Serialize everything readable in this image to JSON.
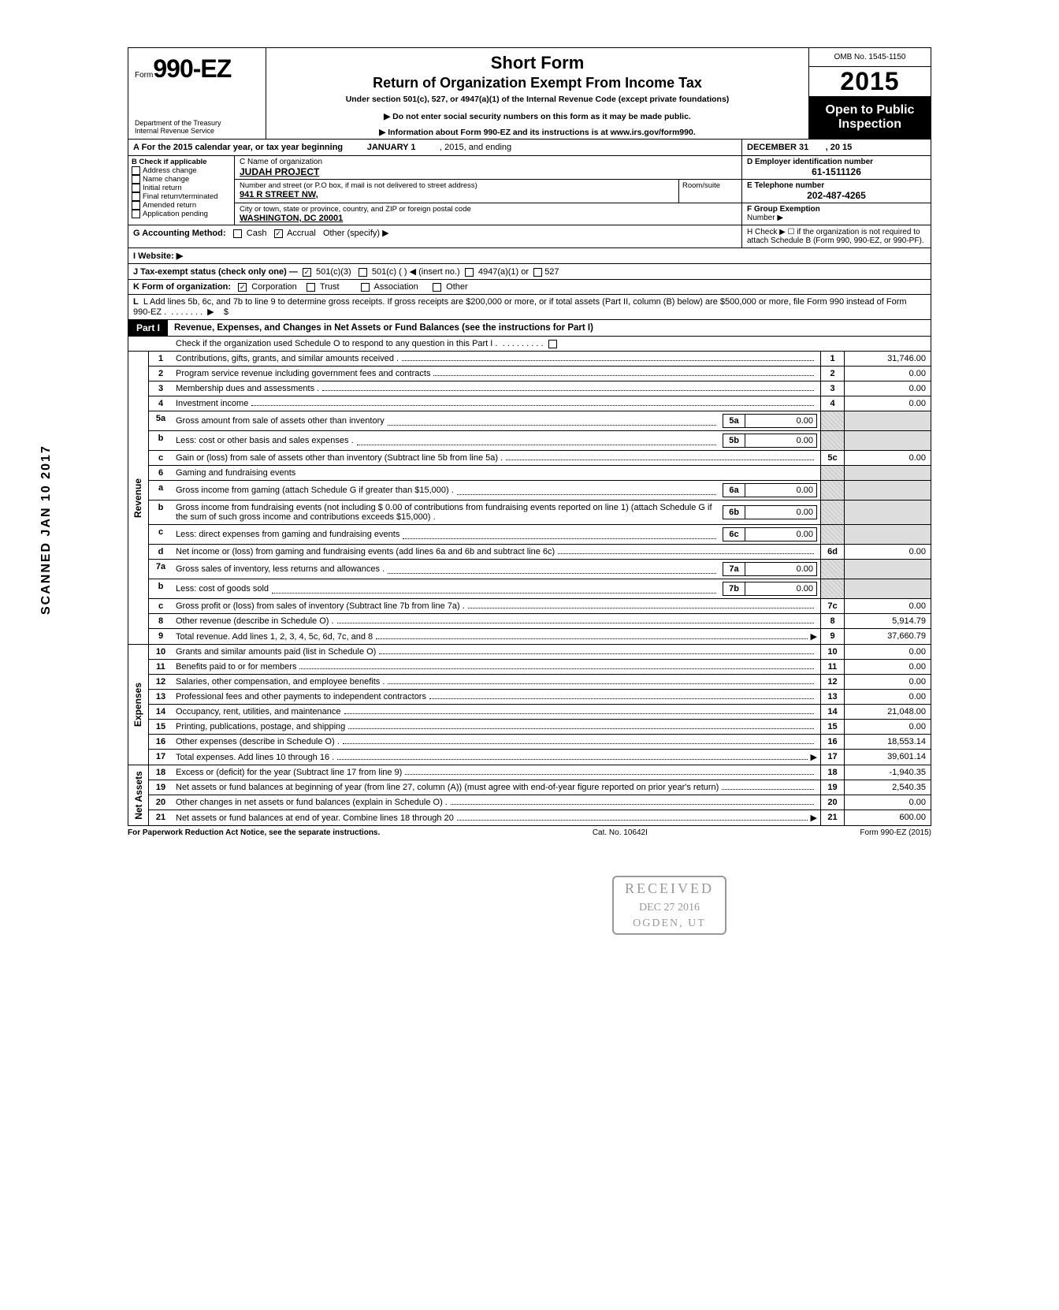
{
  "header": {
    "form_prefix": "Form",
    "form_number": "990-EZ",
    "dept1": "Department of the Treasury",
    "dept2": "Internal Revenue Service",
    "short_form": "Short Form",
    "return_title": "Return of Organization Exempt From Income Tax",
    "under_section": "Under section 501(c), 527, or 4947(a)(1) of the Internal Revenue Code (except private foundations)",
    "instr1": "▶ Do not enter social security numbers on this form as it may be made public.",
    "instr2": "▶ Information about Form 990-EZ and its instructions is at www.irs.gov/form990.",
    "omb": "OMB No. 1545-1150",
    "year": "2015",
    "open1": "Open to Public",
    "open2": "Inspection"
  },
  "row_a": {
    "text_left": "A  For the 2015 calendar year, or tax year beginning",
    "begin": "JANUARY 1",
    "mid": ", 2015, and ending",
    "end": "DECEMBER 31",
    "end2": ", 20   15"
  },
  "col_b": {
    "heading": "B  Check if applicable",
    "items": [
      "Address change",
      "Name change",
      "Initial return",
      "Final return/terminated",
      "Amended return",
      "Application pending"
    ]
  },
  "section_c": {
    "c_label": "C  Name of organization",
    "c_name": "JUDAH PROJECT",
    "addr_label": "Number and street (or P.O  box, if mail is not delivered to street address)",
    "addr": "941 R STREET NW,",
    "room_label": "Room/suite",
    "city_label": "City or town, state or province, country, and ZIP or foreign postal code",
    "city": "WASHINGTON, DC 20001"
  },
  "section_d": {
    "d_label": "D Employer identification number",
    "ein": "61-1511126",
    "e_label": "E Telephone number",
    "phone": "202-487-4265",
    "f_label": "F Group Exemption",
    "f_label2": "Number ▶"
  },
  "row_g": {
    "g": "G  Accounting Method:",
    "cash": "Cash",
    "accrual": "Accrual",
    "other": "Other (specify) ▶",
    "h": "H  Check ▶ ☐ if the organization is not required to attach Schedule B (Form 990, 990-EZ, or 990-PF)."
  },
  "row_i": {
    "i": "I   Website: ▶"
  },
  "row_j": {
    "j": "J  Tax-exempt status (check only one) —",
    "c3": "501(c)(3)",
    "c": "501(c) (          ) ◀ (insert no.)",
    "a4947": "4947(a)(1) or",
    "s527": "527"
  },
  "row_k": {
    "k": "K  Form of organization:",
    "corp": "Corporation",
    "trust": "Trust",
    "assoc": "Association",
    "other": "Other"
  },
  "row_l": {
    "l": "L  Add lines 5b, 6c, and 7b to line 9 to determine gross receipts. If gross receipts are $200,000 or more, or if total assets (Part II, column (B) below) are $500,000 or more, file Form 990 instead of Form 990-EZ .",
    "arrow": "▶",
    "dollar": "$"
  },
  "part1": {
    "label": "Part I",
    "title": "Revenue, Expenses, and Changes in Net Assets or Fund Balances (see the instructions for Part I)",
    "sub": "Check if the organization used Schedule O to respond to any question in this Part I ."
  },
  "side_labels": {
    "revenue": "Revenue",
    "expenses": "Expenses",
    "net": "Net Assets"
  },
  "lines": {
    "l1": {
      "n": "1",
      "d": "Contributions, gifts, grants, and similar amounts received .",
      "amt": "31,746.00"
    },
    "l2": {
      "n": "2",
      "d": "Program service revenue including government fees and contracts",
      "amt": "0.00"
    },
    "l3": {
      "n": "3",
      "d": "Membership dues and assessments .",
      "amt": "0.00"
    },
    "l4": {
      "n": "4",
      "d": "Investment income",
      "amt": "0.00"
    },
    "l5a": {
      "n": "5a",
      "d": "Gross amount from sale of assets other than inventory",
      "ib": "5a",
      "iamt": "0.00"
    },
    "l5b": {
      "n": "b",
      "d": "Less: cost or other basis and sales expenses .",
      "ib": "5b",
      "iamt": "0.00"
    },
    "l5c": {
      "n": "c",
      "d": "Gain or (loss) from sale of assets other than inventory (Subtract line 5b from line 5a) .",
      "box": "5c",
      "amt": "0.00"
    },
    "l6": {
      "n": "6",
      "d": "Gaming and fundraising events"
    },
    "l6a": {
      "n": "a",
      "d": "Gross income from gaming (attach Schedule G if greater than $15,000) .",
      "ib": "6a",
      "iamt": "0.00"
    },
    "l6b": {
      "n": "b",
      "d": "Gross income from fundraising events (not including  $               0.00 of contributions from fundraising events reported on line 1) (attach Schedule G if the sum of such gross income and contributions exceeds $15,000) .",
      "ib": "6b",
      "iamt": "0.00"
    },
    "l6c": {
      "n": "c",
      "d": "Less: direct expenses from gaming and fundraising events",
      "ib": "6c",
      "iamt": "0.00"
    },
    "l6d": {
      "n": "d",
      "d": "Net income or (loss) from gaming and fundraising events (add lines 6a and 6b and subtract line 6c)",
      "box": "6d",
      "amt": "0.00"
    },
    "l7a": {
      "n": "7a",
      "d": "Gross sales of inventory, less returns and allowances .",
      "ib": "7a",
      "iamt": "0.00"
    },
    "l7b": {
      "n": "b",
      "d": "Less: cost of goods sold",
      "ib": "7b",
      "iamt": "0.00"
    },
    "l7c": {
      "n": "c",
      "d": "Gross profit or (loss) from sales of inventory (Subtract line 7b from line 7a) .",
      "box": "7c",
      "amt": "0.00"
    },
    "l8": {
      "n": "8",
      "d": "Other revenue (describe in Schedule O) .",
      "box": "8",
      "amt": "5,914.79"
    },
    "l9": {
      "n": "9",
      "d": "Total revenue. Add lines 1, 2, 3, 4, 5c, 6d, 7c, and 8",
      "box": "9",
      "amt": "37,660.79"
    },
    "l10": {
      "n": "10",
      "d": "Grants and similar amounts paid (list in Schedule O)",
      "box": "10",
      "amt": "0.00"
    },
    "l11": {
      "n": "11",
      "d": "Benefits paid to or for members",
      "box": "11",
      "amt": "0.00"
    },
    "l12": {
      "n": "12",
      "d": "Salaries, other compensation, and employee benefits .",
      "box": "12",
      "amt": "0.00"
    },
    "l13": {
      "n": "13",
      "d": "Professional fees and other payments to independent contractors",
      "box": "13",
      "amt": "0.00"
    },
    "l14": {
      "n": "14",
      "d": "Occupancy, rent, utilities, and maintenance",
      "box": "14",
      "amt": "21,048.00"
    },
    "l15": {
      "n": "15",
      "d": "Printing, publications, postage, and shipping",
      "box": "15",
      "amt": "0.00"
    },
    "l16": {
      "n": "16",
      "d": "Other expenses (describe in Schedule O) .",
      "box": "16",
      "amt": "18,553.14"
    },
    "l17": {
      "n": "17",
      "d": "Total expenses. Add lines 10 through 16 .",
      "box": "17",
      "amt": "39,601.14"
    },
    "l18": {
      "n": "18",
      "d": "Excess or (deficit) for the year (Subtract line 17 from line 9)",
      "box": "18",
      "amt": "-1,940.35"
    },
    "l19": {
      "n": "19",
      "d": "Net assets or fund balances at beginning of year (from line 27, column (A)) (must agree with end-of-year figure reported on prior year's return)",
      "box": "19",
      "amt": "2,540.35"
    },
    "l20": {
      "n": "20",
      "d": "Other changes in net assets or fund balances (explain in Schedule O) .",
      "box": "20",
      "amt": "0.00"
    },
    "l21": {
      "n": "21",
      "d": "Net assets or fund balances at end of year. Combine lines 18 through 20",
      "box": "21",
      "amt": "600.00"
    }
  },
  "footer": {
    "left": "For Paperwork Reduction Act Notice, see the separate instructions.",
    "mid": "Cat. No. 10642I",
    "right": "Form 990-EZ (2015)"
  },
  "stamp": {
    "r1": "RECEIVED",
    "r2": "DEC 27 2016",
    "r3": "OGDEN, UT"
  },
  "scanned": "SCANNED JAN 10 2017"
}
